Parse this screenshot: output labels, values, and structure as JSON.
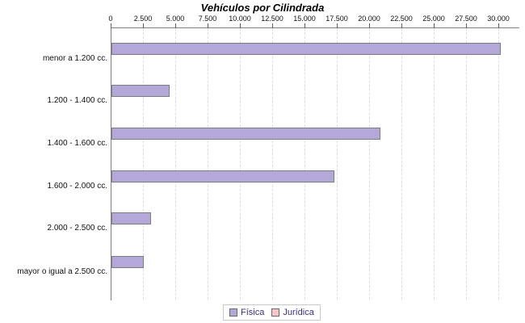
{
  "chart_data": {
    "type": "bar",
    "orientation": "horizontal",
    "title": "Vehículos por Cilindrada",
    "categories": [
      "menor a 1.200 cc.",
      "1.200 - 1.400 cc.",
      "1.400 - 1.600 cc.",
      "1.600 - 2.000 cc.",
      "2.000 - 2.500 cc.",
      "mayor o igual a 2.500 cc."
    ],
    "series": [
      {
        "name": "Física",
        "color": "#b3a8d7",
        "values": [
          30100,
          4500,
          20800,
          17250,
          3050,
          2500
        ]
      },
      {
        "name": "Jurídica",
        "color": "#f5c6c6",
        "values": [
          0,
          0,
          0,
          0,
          0,
          0
        ]
      }
    ],
    "x_axis": {
      "position": "top",
      "ticks": [
        0,
        2500,
        5000,
        7500,
        10000,
        12500,
        15000,
        17500,
        20000,
        22500,
        25000,
        27500,
        30000
      ],
      "tick_labels": [
        "0",
        "2.500",
        "5.000",
        "7.500",
        "10.000",
        "12.500",
        "15.000",
        "17.500",
        "20.000",
        "22.500",
        "25.000",
        "27.500",
        "30.000"
      ],
      "min": 0,
      "max": 31600
    },
    "grid": "vertical-dashed",
    "legend": {
      "position": "bottom-center",
      "entries": [
        "Física",
        "Jurídica"
      ]
    },
    "colors": {
      "bar_fisica": "#b3a8d7",
      "bar_juridica": "#f5c6c6",
      "bar_border": "#7c7c84",
      "axis_line": "#808080",
      "gridline": "#dcdcdc",
      "legend_text": "#3a2e78",
      "title_text": "#000000"
    }
  }
}
